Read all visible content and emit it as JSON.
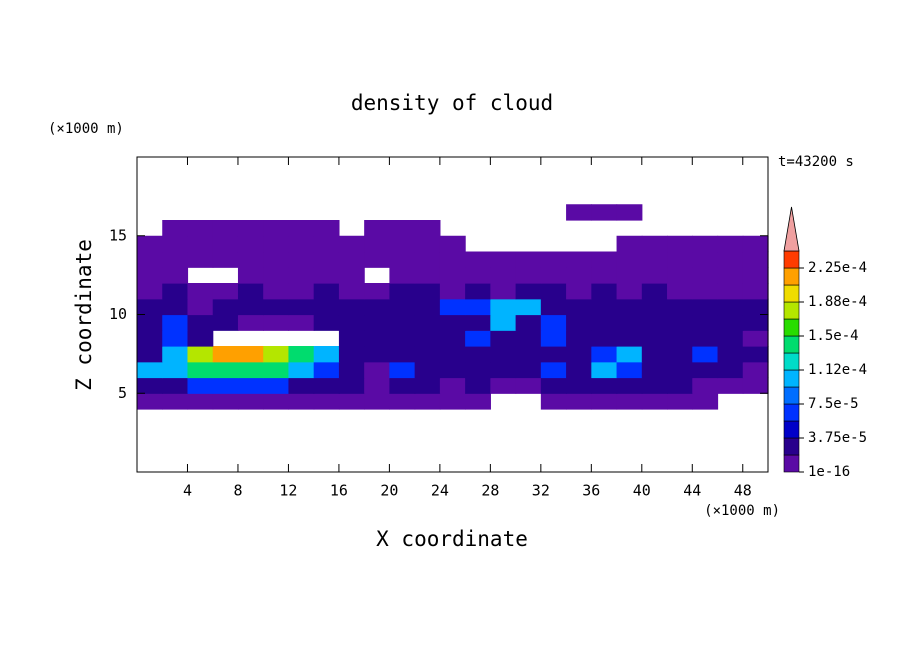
{
  "chart_data": {
    "type": "contour",
    "title": "density of cloud",
    "x_label": "X coordinate",
    "y_label": "Z coordinate",
    "x_unit": "(×1000 m)",
    "y_unit": "(×1000 m)",
    "annotation": "t=43200 s",
    "xlim": [
      0,
      50
    ],
    "xticks": [
      4,
      8,
      12,
      16,
      20,
      24,
      28,
      32,
      36,
      40,
      44,
      48
    ],
    "ylim": [
      0,
      20
    ],
    "yticks": [
      5,
      10,
      15
    ],
    "x": [
      1,
      3,
      5,
      7,
      9,
      11,
      13,
      15,
      17,
      19,
      21,
      23,
      25,
      27,
      29,
      31,
      33,
      35,
      37,
      39,
      41,
      43,
      45,
      47,
      49
    ],
    "y": [
      4.5,
      5.5,
      6.5,
      7.5,
      8.5,
      9.5,
      10.5,
      11.5,
      12.5,
      13.5,
      14.5,
      15.5,
      16.5
    ],
    "values": [
      [
        1e-05,
        1e-05,
        1e-05,
        1e-05,
        1e-05,
        1e-05,
        1e-05,
        1e-05,
        1e-05,
        1e-05,
        1e-05,
        1e-05,
        1e-05,
        1e-05,
        0,
        0,
        1e-05,
        1e-05,
        1e-05,
        1e-05,
        1e-05,
        1e-05,
        1e-05,
        0,
        0
      ],
      [
        3e-05,
        3e-05,
        6e-05,
        6e-05,
        6e-05,
        6e-05,
        3e-05,
        3e-05,
        3e-05,
        1e-05,
        3e-05,
        3e-05,
        1e-05,
        3e-05,
        1e-05,
        1e-05,
        3e-05,
        3e-05,
        3e-05,
        3e-05,
        3e-05,
        3e-05,
        1e-05,
        1e-05,
        1e-05
      ],
      [
        0.0001,
        0.0001,
        0.00014,
        0.00014,
        0.00014,
        0.00014,
        0.0001,
        6e-05,
        3e-05,
        1e-05,
        6e-05,
        3e-05,
        3e-05,
        3e-05,
        3e-05,
        3e-05,
        6e-05,
        3e-05,
        0.0001,
        6e-05,
        3e-05,
        3e-05,
        3e-05,
        3e-05,
        1e-05
      ],
      [
        3e-05,
        0.0001,
        0.00018,
        0.00021,
        0.00021,
        0.00018,
        0.00014,
        0.0001,
        3e-05,
        3e-05,
        3e-05,
        3e-05,
        3e-05,
        3e-05,
        3e-05,
        3e-05,
        3e-05,
        3e-05,
        6e-05,
        0.0001,
        3e-05,
        3e-05,
        6e-05,
        3e-05,
        3e-05
      ],
      [
        3e-05,
        6e-05,
        3e-05,
        0,
        0,
        0,
        0,
        0,
        3e-05,
        3e-05,
        3e-05,
        3e-05,
        3e-05,
        6e-05,
        3e-05,
        3e-05,
        6e-05,
        3e-05,
        3e-05,
        3e-05,
        3e-05,
        3e-05,
        3e-05,
        3e-05,
        1e-05
      ],
      [
        3e-05,
        6e-05,
        3e-05,
        3e-05,
        1e-05,
        1e-05,
        1e-05,
        3e-05,
        3e-05,
        3e-05,
        3e-05,
        3e-05,
        3e-05,
        3e-05,
        0.0001,
        3e-05,
        6e-05,
        3e-05,
        3e-05,
        3e-05,
        3e-05,
        3e-05,
        3e-05,
        3e-05,
        3e-05
      ],
      [
        3e-05,
        3e-05,
        1e-05,
        3e-05,
        3e-05,
        3e-05,
        3e-05,
        3e-05,
        3e-05,
        3e-05,
        3e-05,
        3e-05,
        6e-05,
        6e-05,
        0.0001,
        0.0001,
        3e-05,
        3e-05,
        3e-05,
        3e-05,
        3e-05,
        3e-05,
        3e-05,
        3e-05,
        3e-05
      ],
      [
        1e-05,
        3e-05,
        1e-05,
        1e-05,
        3e-05,
        1e-05,
        1e-05,
        3e-05,
        1e-05,
        1e-05,
        3e-05,
        3e-05,
        1e-05,
        3e-05,
        1e-05,
        3e-05,
        3e-05,
        1e-05,
        3e-05,
        1e-05,
        3e-05,
        1e-05,
        1e-05,
        1e-05,
        1e-05
      ],
      [
        1e-05,
        1e-05,
        0,
        0,
        1e-05,
        1e-05,
        1e-05,
        1e-05,
        1e-05,
        0,
        1e-05,
        1e-05,
        1e-05,
        1e-05,
        1e-05,
        1e-05,
        1e-05,
        1e-05,
        1e-05,
        1e-05,
        1e-05,
        1e-05,
        1e-05,
        1e-05,
        1e-05
      ],
      [
        1e-05,
        1e-05,
        1e-05,
        1e-05,
        1e-05,
        1e-05,
        1e-05,
        1e-05,
        1e-05,
        1e-05,
        1e-05,
        1e-05,
        1e-05,
        1e-05,
        1e-05,
        1e-05,
        1e-05,
        1e-05,
        1e-05,
        1e-05,
        1e-05,
        1e-05,
        1e-05,
        1e-05,
        1e-05
      ],
      [
        1e-05,
        1e-05,
        1e-05,
        1e-05,
        1e-05,
        1e-05,
        1e-05,
        1e-05,
        1e-05,
        1e-05,
        1e-05,
        1e-05,
        1e-05,
        0,
        0,
        0,
        0,
        0,
        0,
        1e-05,
        1e-05,
        1e-05,
        1e-05,
        1e-05,
        1e-05
      ],
      [
        0,
        1e-05,
        1e-05,
        1e-05,
        1e-05,
        1e-05,
        1e-05,
        1e-05,
        0,
        1e-05,
        1e-05,
        1e-05,
        0,
        0,
        0,
        0,
        0,
        0,
        0,
        0,
        0,
        0,
        0,
        0,
        0
      ],
      [
        0,
        0,
        0,
        0,
        0,
        0,
        0,
        0,
        0,
        0,
        0,
        0,
        0,
        0,
        0,
        0,
        0,
        1e-05,
        1e-05,
        1e-05,
        0,
        0,
        0,
        0,
        0
      ]
    ],
    "levels": [
      1e-16,
      1.875e-05,
      3.75e-05,
      5.625e-05,
      7.5e-05,
      9.375e-05,
      0.0001125,
      0.00013125,
      0.00015,
      0.00016875,
      0.0001875,
      0.00020625,
      0.000225,
      0.00024375
    ],
    "colors": [
      "#5a0aa5",
      "#28008c",
      "#0000c8",
      "#0032ff",
      "#006eff",
      "#00b4ff",
      "#00dcc8",
      "#00dc6e",
      "#28dc00",
      "#b4e600",
      "#f0dc00",
      "#ffa000",
      "#ff3c00"
    ],
    "over_color": "#f0a0a0",
    "colorbar_ticks": [
      {
        "value": 1e-16,
        "label": "1e-16"
      },
      {
        "value": 3.75e-05,
        "label": "3.75e-5"
      },
      {
        "value": 7.5e-05,
        "label": "7.5e-5"
      },
      {
        "value": 0.0001125,
        "label": "1.12e-4"
      },
      {
        "value": 0.00015,
        "label": "1.5e-4"
      },
      {
        "value": 0.0001875,
        "label": "1.88e-4"
      },
      {
        "value": 0.000225,
        "label": "2.25e-4"
      }
    ]
  }
}
